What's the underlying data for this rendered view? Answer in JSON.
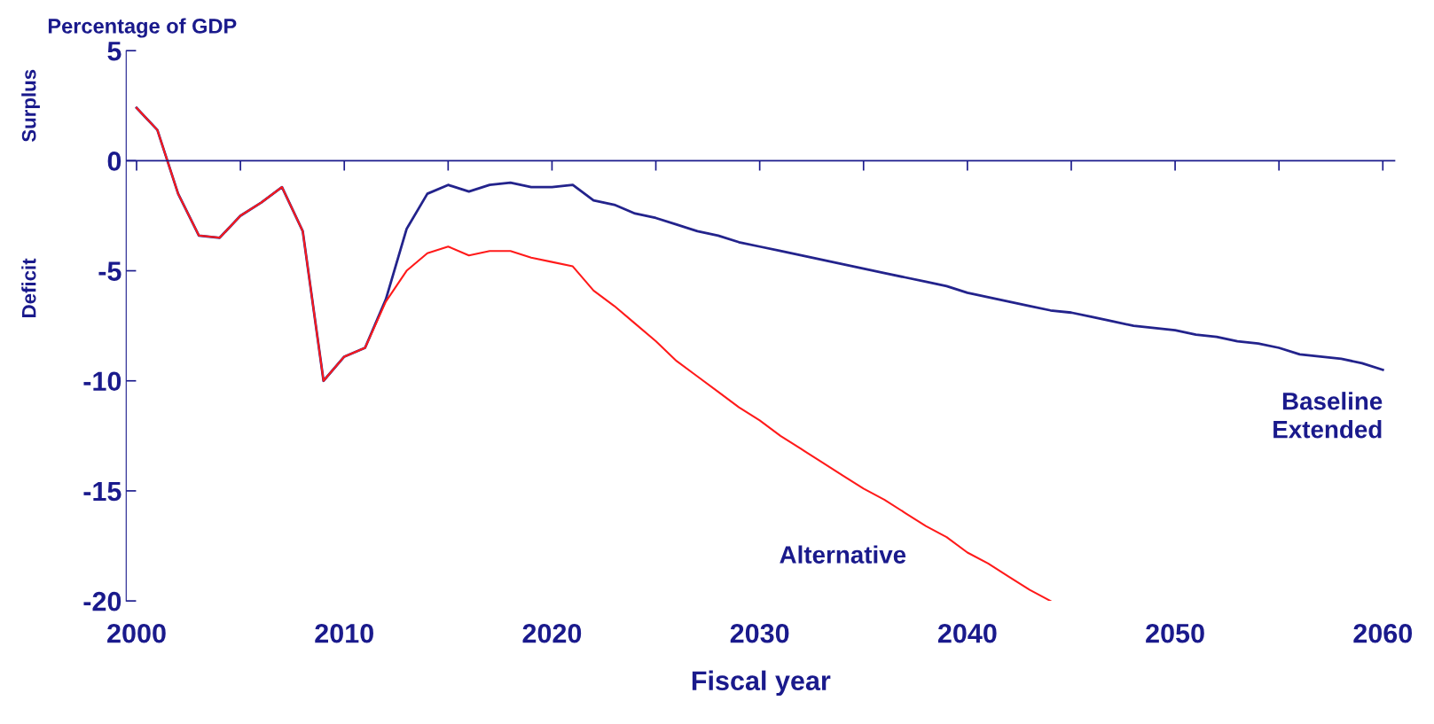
{
  "chart_data": {
    "type": "line",
    "ylabel": "Percentage of GDP",
    "xlabel": "Fiscal year",
    "x": [
      2000,
      2001,
      2002,
      2003,
      2004,
      2005,
      2006,
      2007,
      2008,
      2009,
      2010,
      2011,
      2012,
      2013,
      2014,
      2015,
      2016,
      2017,
      2018,
      2019,
      2020,
      2021,
      2022,
      2023,
      2024,
      2025,
      2026,
      2027,
      2028,
      2029,
      2030,
      2031,
      2032,
      2033,
      2034,
      2035,
      2036,
      2037,
      2038,
      2039,
      2040,
      2041,
      2042,
      2043,
      2044,
      2045,
      2046,
      2047,
      2048,
      2049,
      2050,
      2051,
      2052,
      2053,
      2054,
      2055,
      2056,
      2057,
      2058,
      2059,
      2060
    ],
    "series": [
      {
        "name": "Baseline\nExtended",
        "color": "#23238c",
        "values": [
          2.4,
          1.4,
          -1.5,
          -3.4,
          -3.5,
          -2.5,
          -1.9,
          -1.2,
          -3.2,
          -10.0,
          -8.9,
          -8.5,
          -6.3,
          -3.1,
          -1.5,
          -1.1,
          -1.4,
          -1.1,
          -1.0,
          -1.2,
          -1.2,
          -1.1,
          -1.8,
          -2.0,
          -2.4,
          -2.6,
          -2.9,
          -3.2,
          -3.4,
          -3.7,
          -3.9,
          -4.1,
          -4.3,
          -4.5,
          -4.7,
          -4.9,
          -5.1,
          -5.3,
          -5.5,
          -5.7,
          -6.0,
          -6.2,
          -6.4,
          -6.6,
          -6.8,
          -6.9,
          -7.1,
          -7.3,
          -7.5,
          -7.6,
          -7.7,
          -7.9,
          -8.0,
          -8.2,
          -8.3,
          -8.5,
          -8.8,
          -8.9,
          -9.0,
          -9.2,
          -9.5
        ]
      },
      {
        "name": "Alternative",
        "color": "#ff1a1a",
        "values": [
          2.4,
          1.4,
          -1.5,
          -3.4,
          -3.5,
          -2.5,
          -1.9,
          -1.2,
          -3.2,
          -10.0,
          -8.9,
          -8.5,
          -6.4,
          -5.0,
          -4.2,
          -3.9,
          -4.3,
          -4.1,
          -4.1,
          -4.4,
          -4.6,
          -4.8,
          -5.9,
          -6.6,
          -7.4,
          -8.2,
          -9.1,
          -9.8,
          -10.5,
          -11.2,
          -11.8,
          -12.5,
          -13.1,
          -13.7,
          -14.3,
          -14.9,
          -15.4,
          -16.0,
          -16.6,
          -17.1,
          -17.8,
          -18.3,
          -18.9,
          -19.5,
          -20.0,
          null,
          null,
          null,
          null,
          null,
          null,
          null,
          null,
          null,
          null,
          null,
          null,
          null,
          null,
          null,
          null
        ]
      }
    ],
    "xlim": [
      1999.5,
      2060.6
    ],
    "xticks": [
      2000,
      {
        "value": 2005,
        "label": null
      },
      2010,
      {
        "value": 2015,
        "label": null
      },
      2020,
      {
        "value": 2025,
        "label": null
      },
      2030,
      {
        "value": 2035,
        "label": null
      },
      2040,
      {
        "value": 2045,
        "label": null
      },
      2050,
      {
        "value": 2055,
        "label": null
      },
      2060
    ],
    "ylim": [
      -20,
      5
    ],
    "yticks": [
      5,
      0,
      -5,
      -10,
      -15,
      -20
    ],
    "annotations": [
      "Surplus",
      "Deficit"
    ],
    "ref_lines": [
      {
        "axis": "y",
        "value": 0,
        "color": "#1a1a8c"
      }
    ],
    "grid": false,
    "legend": false
  }
}
